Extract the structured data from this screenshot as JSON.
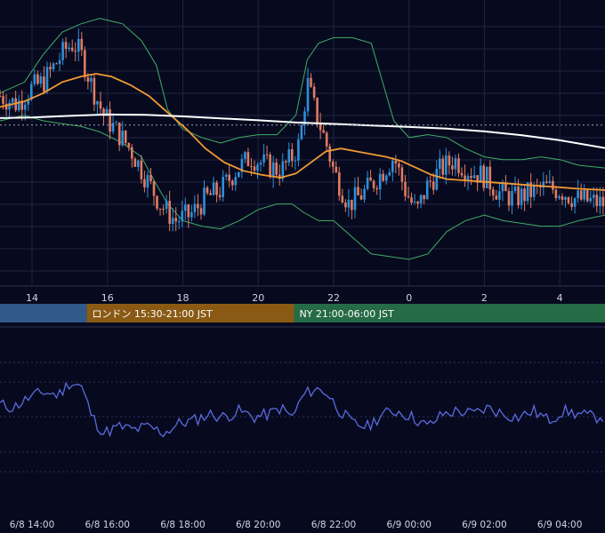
{
  "chart_data": {
    "type": "candlestick",
    "price_panel": {
      "x_ticks": [
        {
          "label": "14",
          "hour": 14
        },
        {
          "label": "16",
          "hour": 16
        },
        {
          "label": "18",
          "hour": 18
        },
        {
          "label": "20",
          "hour": 20
        },
        {
          "label": "22",
          "hour": 22
        },
        {
          "label": "0",
          "hour": 24
        },
        {
          "label": "2",
          "hour": 26
        },
        {
          "label": "4",
          "hour": 28
        }
      ],
      "x_range_hours": [
        13.15,
        29.2
      ],
      "ylim": [
        0,
        100
      ],
      "reference_level": 56.5,
      "candle_interval_minutes": 5,
      "close_anchors": [
        [
          13.15,
          67
        ],
        [
          13.6,
          64
        ],
        [
          14.0,
          70
        ],
        [
          14.3,
          72
        ],
        [
          14.6,
          78
        ],
        [
          14.9,
          84
        ],
        [
          15.1,
          86
        ],
        [
          15.3,
          82
        ],
        [
          15.6,
          70
        ],
        [
          15.9,
          60
        ],
        [
          16.2,
          55
        ],
        [
          16.6,
          48
        ],
        [
          17.0,
          38
        ],
        [
          17.4,
          28
        ],
        [
          17.8,
          22
        ],
        [
          18.2,
          24
        ],
        [
          18.6,
          30
        ],
        [
          19.0,
          33
        ],
        [
          19.4,
          40
        ],
        [
          19.8,
          45
        ],
        [
          20.2,
          42
        ],
        [
          20.6,
          40
        ],
        [
          20.9,
          45
        ],
        [
          21.1,
          50
        ],
        [
          21.3,
          72
        ],
        [
          21.5,
          62
        ],
        [
          21.8,
          50
        ],
        [
          22.0,
          40
        ],
        [
          22.4,
          28
        ],
        [
          22.8,
          32
        ],
        [
          23.2,
          38
        ],
        [
          23.6,
          45
        ],
        [
          23.9,
          33
        ],
        [
          24.2,
          25
        ],
        [
          24.5,
          35
        ],
        [
          24.8,
          40
        ],
        [
          25.2,
          44
        ],
        [
          25.6,
          40
        ],
        [
          26.0,
          38
        ],
        [
          26.4,
          32
        ],
        [
          26.8,
          30
        ],
        [
          27.2,
          32
        ],
        [
          27.6,
          34
        ],
        [
          28.0,
          33
        ],
        [
          28.4,
          30
        ],
        [
          28.8,
          29
        ],
        [
          29.2,
          28
        ]
      ],
      "series": [
        {
          "name": "",
          "kind": "ma_short",
          "color": "#f39a32",
          "points": [
            [
              13.15,
              63
            ],
            [
              13.8,
              65
            ],
            [
              14.3,
              68
            ],
            [
              14.8,
              72
            ],
            [
              15.3,
              74
            ],
            [
              15.7,
              75
            ],
            [
              16.1,
              74
            ],
            [
              16.6,
              71
            ],
            [
              17.1,
              67
            ],
            [
              17.6,
              61
            ],
            [
              18.1,
              55
            ],
            [
              18.6,
              48
            ],
            [
              19.1,
              43
            ],
            [
              19.6,
              40
            ],
            [
              20.1,
              38.5
            ],
            [
              20.6,
              37.5
            ],
            [
              21.0,
              39
            ],
            [
              21.4,
              43
            ],
            [
              21.8,
              47
            ],
            [
              22.2,
              48
            ],
            [
              22.6,
              47
            ],
            [
              23.0,
              46
            ],
            [
              23.4,
              45
            ],
            [
              23.8,
              43.5
            ],
            [
              24.2,
              41
            ],
            [
              24.6,
              38.5
            ],
            [
              25.0,
              37
            ],
            [
              25.5,
              36.5
            ],
            [
              26.0,
              36
            ],
            [
              26.5,
              35.5
            ],
            [
              27.0,
              35
            ],
            [
              27.5,
              34.5
            ],
            [
              28.0,
              34
            ],
            [
              28.5,
              33.5
            ],
            [
              29.2,
              33
            ]
          ]
        },
        {
          "name": "",
          "kind": "ma_long",
          "color": "#ffffff",
          "points": [
            [
              13.15,
              59
            ],
            [
              14.0,
              59.2
            ],
            [
              15.0,
              59.8
            ],
            [
              16.0,
              60.3
            ],
            [
              17.0,
              60.2
            ],
            [
              18.0,
              59.6
            ],
            [
              19.0,
              58.9
            ],
            [
              20.0,
              58.2
            ],
            [
              21.0,
              57.4
            ],
            [
              22.0,
              56.9
            ],
            [
              23.0,
              56.3
            ],
            [
              24.0,
              55.8
            ],
            [
              25.0,
              55.2
            ],
            [
              26.0,
              54.2
            ],
            [
              27.0,
              52.8
            ],
            [
              28.0,
              51.0
            ],
            [
              29.2,
              48.2
            ]
          ]
        },
        {
          "name": "",
          "kind": "band_upper",
          "color": "#3fae65",
          "points": [
            [
              13.15,
              68
            ],
            [
              13.8,
              72
            ],
            [
              14.3,
              82
            ],
            [
              14.8,
              90
            ],
            [
              15.3,
              93
            ],
            [
              15.8,
              95
            ],
            [
              16.4,
              93
            ],
            [
              16.9,
              87
            ],
            [
              17.3,
              78
            ],
            [
              17.6,
              62
            ],
            [
              18.0,
              55
            ],
            [
              18.5,
              52
            ],
            [
              19.0,
              50
            ],
            [
              19.5,
              52
            ],
            [
              20.0,
              53
            ],
            [
              20.5,
              53
            ],
            [
              21.0,
              60
            ],
            [
              21.3,
              80
            ],
            [
              21.6,
              86
            ],
            [
              22.0,
              88
            ],
            [
              22.5,
              88
            ],
            [
              23.0,
              86
            ],
            [
              23.3,
              72
            ],
            [
              23.6,
              58
            ],
            [
              24.0,
              52
            ],
            [
              24.5,
              53
            ],
            [
              25.0,
              52
            ],
            [
              25.5,
              48
            ],
            [
              26.0,
              45
            ],
            [
              26.5,
              44
            ],
            [
              27.0,
              44
            ],
            [
              27.5,
              45
            ],
            [
              28.0,
              44
            ],
            [
              28.5,
              42
            ],
            [
              29.2,
              41
            ]
          ]
        },
        {
          "name": "",
          "kind": "band_lower",
          "color": "#3fae65",
          "points": [
            [
              13.15,
              58
            ],
            [
              13.8,
              60
            ],
            [
              14.3,
              58
            ],
            [
              14.8,
              57
            ],
            [
              15.3,
              56
            ],
            [
              15.8,
              54
            ],
            [
              16.4,
              50
            ],
            [
              16.9,
              45
            ],
            [
              17.3,
              35
            ],
            [
              17.6,
              28
            ],
            [
              18.0,
              22
            ],
            [
              18.5,
              20
            ],
            [
              19.0,
              19
            ],
            [
              19.5,
              22
            ],
            [
              20.0,
              26
            ],
            [
              20.5,
              28
            ],
            [
              20.9,
              28
            ],
            [
              21.2,
              25
            ],
            [
              21.6,
              22
            ],
            [
              22.0,
              22
            ],
            [
              22.5,
              16
            ],
            [
              23.0,
              10
            ],
            [
              23.5,
              9
            ],
            [
              24.0,
              8
            ],
            [
              24.5,
              10
            ],
            [
              25.0,
              18
            ],
            [
              25.5,
              22
            ],
            [
              26.0,
              24
            ],
            [
              26.5,
              22
            ],
            [
              27.0,
              21
            ],
            [
              27.5,
              20
            ],
            [
              28.0,
              20
            ],
            [
              28.5,
              22
            ],
            [
              29.2,
              24
            ]
          ]
        }
      ]
    },
    "sessions": [
      {
        "label": "",
        "start_hour": 13.15,
        "end_hour": 15.45,
        "color": "#2f5a8a"
      },
      {
        "label": "ロンドン 15:30-21:00 JST",
        "start_hour": 15.45,
        "end_hour": 20.95,
        "color": "#8a5a14"
      },
      {
        "label": "NY 21:00-06:00 JST",
        "start_hour": 20.95,
        "end_hour": 29.2,
        "color": "#256b45"
      }
    ],
    "oscillator_panel": {
      "color": "#5b6bde",
      "ylim": [
        0,
        100
      ],
      "points": [
        [
          13.15,
          52
        ],
        [
          13.5,
          50
        ],
        [
          13.9,
          56
        ],
        [
          14.3,
          60
        ],
        [
          14.7,
          58
        ],
        [
          15.0,
          66
        ],
        [
          15.3,
          64
        ],
        [
          15.6,
          44
        ],
        [
          15.9,
          34
        ],
        [
          16.3,
          38
        ],
        [
          16.7,
          36
        ],
        [
          17.1,
          38
        ],
        [
          17.5,
          34
        ],
        [
          17.9,
          40
        ],
        [
          18.3,
          42
        ],
        [
          18.7,
          46
        ],
        [
          19.1,
          44
        ],
        [
          19.5,
          48
        ],
        [
          19.9,
          44
        ],
        [
          20.3,
          46
        ],
        [
          20.6,
          50
        ],
        [
          20.9,
          44
        ],
        [
          21.2,
          58
        ],
        [
          21.5,
          62
        ],
        [
          21.8,
          60
        ],
        [
          22.1,
          50
        ],
        [
          22.5,
          40
        ],
        [
          22.9,
          38
        ],
        [
          23.3,
          46
        ],
        [
          23.7,
          48
        ],
        [
          24.1,
          44
        ],
        [
          24.5,
          38
        ],
        [
          24.9,
          46
        ],
        [
          25.3,
          48
        ],
        [
          25.7,
          46
        ],
        [
          26.1,
          50
        ],
        [
          26.5,
          46
        ],
        [
          26.9,
          44
        ],
        [
          27.3,
          48
        ],
        [
          27.7,
          42
        ],
        [
          28.1,
          48
        ],
        [
          28.5,
          46
        ],
        [
          28.9,
          44
        ],
        [
          29.2,
          45
        ]
      ]
    },
    "time_axis": [
      {
        "label": "6/8 14:00",
        "hour": 14
      },
      {
        "label": "6/8 16:00",
        "hour": 16
      },
      {
        "label": "6/8 18:00",
        "hour": 18
      },
      {
        "label": "6/8 20:00",
        "hour": 20
      },
      {
        "label": "6/8 22:00",
        "hour": 22
      },
      {
        "label": "6/9 00:00",
        "hour": 24
      },
      {
        "label": "6/9 02:00",
        "hour": 26
      },
      {
        "label": "6/9 04:00",
        "hour": 28
      }
    ],
    "colors": {
      "background": "#070a1f",
      "grid": "#1f2440",
      "up": "#2f8fd8",
      "down": "#e07b62",
      "axis_text": "#d0d3de",
      "reference_line": "#9aa0b0"
    }
  }
}
